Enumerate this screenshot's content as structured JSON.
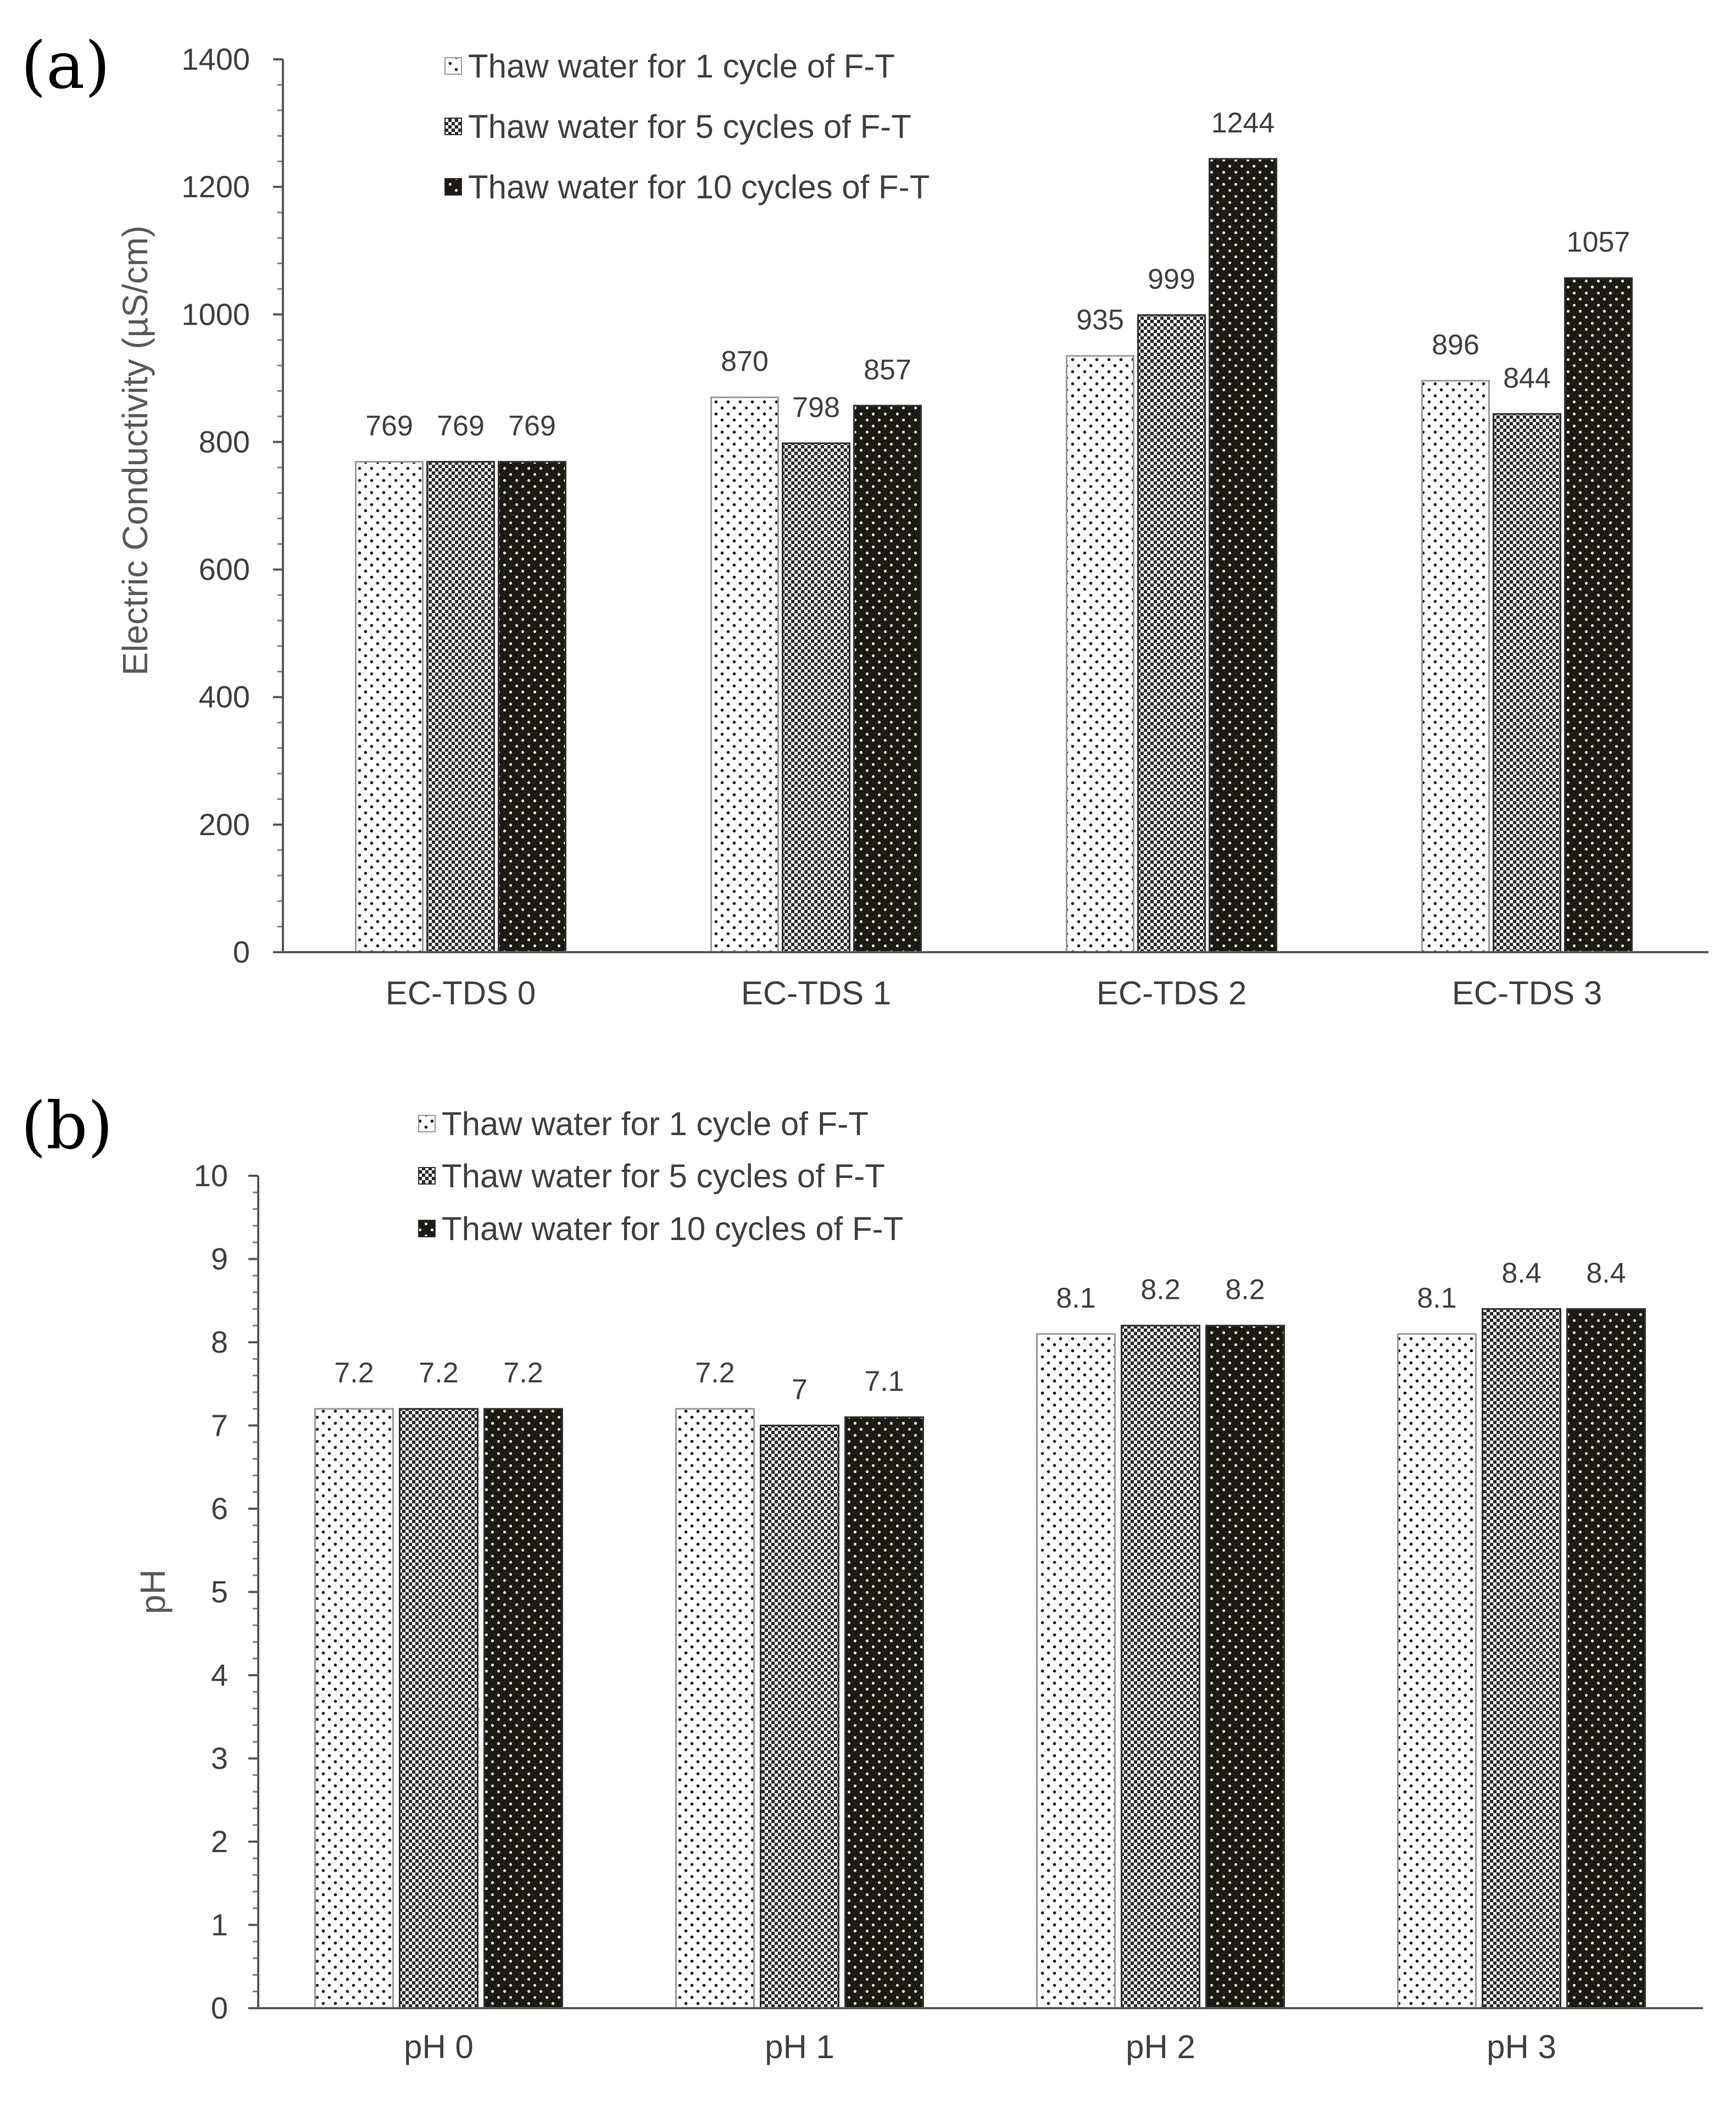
{
  "panels": [
    {
      "letter": "(a)"
    },
    {
      "letter": "(b)"
    }
  ],
  "chart_data": [
    {
      "type": "bar",
      "title": "",
      "xlabel": "",
      "ylabel": "Electric Conductivity (µS/cm)",
      "ylim": [
        0,
        1400
      ],
      "ytick_step": 200,
      "ytick_labels": [
        "0",
        "200",
        "400",
        "600",
        "800",
        "1000",
        "1200",
        "1400"
      ],
      "grid": false,
      "legend_placement": "top-left",
      "categories": [
        "EC-TDS 0",
        "EC-TDS 1",
        "EC-TDS 2",
        "EC-TDS 3"
      ],
      "series": [
        {
          "name": "Thaw water for 1 cycle of F-T",
          "values": [
            769,
            870,
            935,
            896
          ],
          "labels": [
            "769",
            "870",
            "935",
            "896"
          ],
          "pattern": "sparse-dots"
        },
        {
          "name": "Thaw water for 5 cycles of F-T",
          "values": [
            769,
            798,
            999,
            844
          ],
          "labels": [
            "769",
            "798",
            "999",
            "844"
          ],
          "pattern": "checker"
        },
        {
          "name": "Thaw water for 10 cycles of F-T",
          "values": [
            769,
            857,
            1244,
            1057
          ],
          "labels": [
            "769",
            "857",
            "1244",
            "1057"
          ],
          "pattern": "dark-dots"
        }
      ]
    },
    {
      "type": "bar",
      "title": "",
      "xlabel": "",
      "ylabel": "pH",
      "ylim": [
        0,
        10
      ],
      "ytick_step": 1,
      "ytick_labels": [
        "0",
        "1",
        "2",
        "3",
        "4",
        "5",
        "6",
        "7",
        "8",
        "9",
        "10"
      ],
      "grid": false,
      "legend_placement": "top-left",
      "categories": [
        "pH 0",
        "pH 1",
        "pH 2",
        "pH 3"
      ],
      "series": [
        {
          "name": "Thaw water for 1 cycle of F-T",
          "values": [
            7.2,
            7.2,
            8.1,
            8.1
          ],
          "labels": [
            "7.2",
            "7.2",
            "8.1",
            "8.1"
          ],
          "pattern": "sparse-dots"
        },
        {
          "name": "Thaw water for 5 cycles of F-T",
          "values": [
            7.2,
            7.0,
            8.2,
            8.4
          ],
          "labels": [
            "7.2",
            "7",
            "8.2",
            "8.4"
          ],
          "pattern": "checker"
        },
        {
          "name": "Thaw water for 10 cycles of F-T",
          "values": [
            7.2,
            7.1,
            8.2,
            8.4
          ],
          "labels": [
            "7.2",
            "7.1",
            "8.2",
            "8.4"
          ],
          "pattern": "dark-dots"
        }
      ]
    }
  ]
}
